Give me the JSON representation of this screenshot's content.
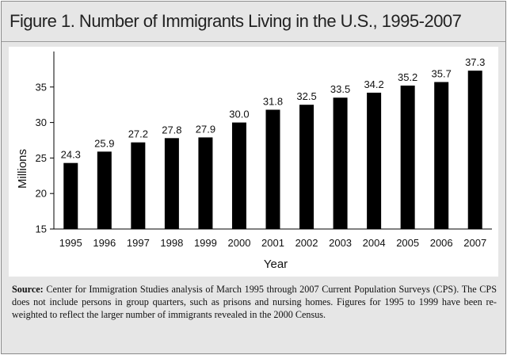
{
  "header": {
    "title": "Figure 1. Number of Immigrants Living in the U.S., 1995-2007"
  },
  "chart_data": {
    "type": "bar",
    "title": "Figure 1. Number of Immigrants Living in the U.S., 1995-2007",
    "xlabel": "Year",
    "ylabel": "Millions",
    "categories": [
      "1995",
      "1996",
      "1997",
      "1998",
      "1999",
      "2000",
      "2001",
      "2002",
      "2003",
      "2004",
      "2005",
      "2006",
      "2007"
    ],
    "values": [
      24.3,
      25.9,
      27.2,
      27.8,
      27.9,
      30.0,
      31.8,
      32.5,
      33.5,
      34.2,
      35.2,
      35.7,
      37.3
    ],
    "value_labels": [
      "24.3",
      "25.9",
      "27.2",
      "27.8",
      "27.9",
      "30.0",
      "31.8",
      "32.5",
      "33.5",
      "34.2",
      "35.2",
      "35.7",
      "37.3"
    ],
    "ylim": [
      15,
      40
    ],
    "yticks": [
      15,
      20,
      25,
      30,
      35
    ],
    "grid": false,
    "legend": "none",
    "colors": {
      "bars": "#000000",
      "panel": "#ffffff",
      "frame": "#e6e6e6"
    }
  },
  "footer": {
    "source_label": "Source:",
    "source_text": " Center for Immigration Studies analysis of March 1995 through 2007 Current Population Surveys (CPS).  The CPS does not include persons in group quarters, such as prisons and nursing homes.  Figures for 1995 to 1999 have been re-weighted to reflect the larger number of immigrants revealed in the 2000 Census."
  }
}
